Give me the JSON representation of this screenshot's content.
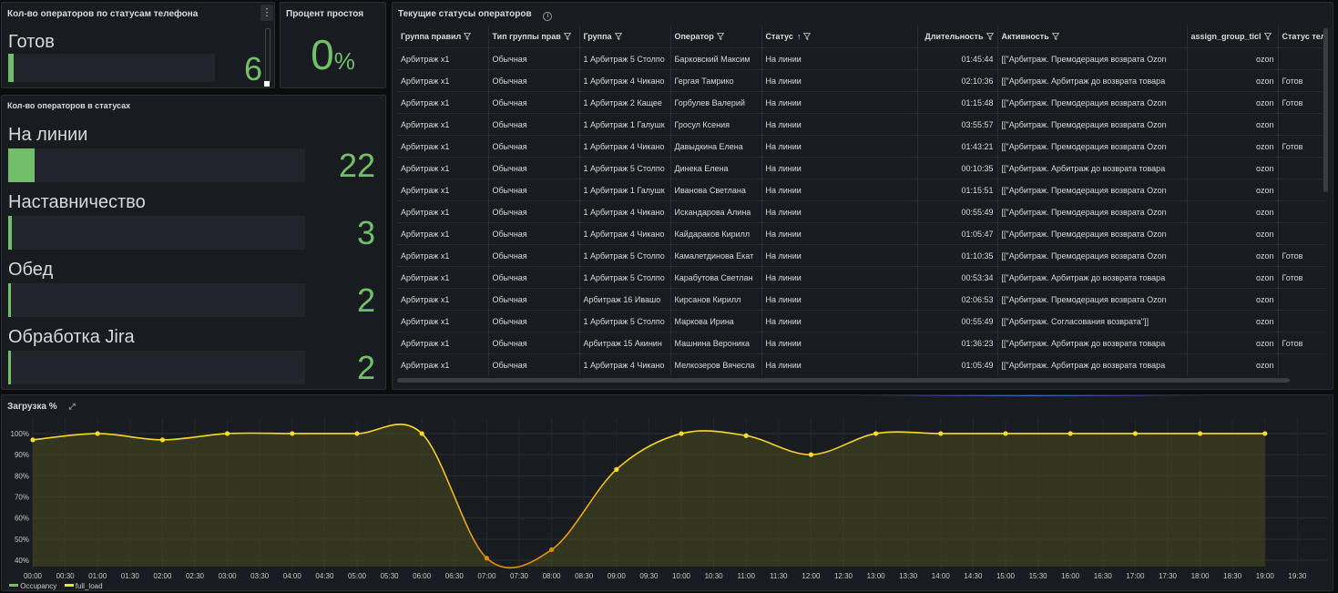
{
  "panel_phone_status": {
    "title": "Кол-во операторов по статусам телефона",
    "rows": [
      {
        "label": "Готов",
        "value": "6",
        "fraction": 0.03
      }
    ]
  },
  "panel_idle": {
    "title": "Процент простоя",
    "value": "0",
    "unit": "%"
  },
  "panel_statuses": {
    "title": "Кол-во операторов в статусах",
    "rows": [
      {
        "label": "На линии",
        "value": "22",
        "fraction": 0.09
      },
      {
        "label": "Наставничество",
        "value": "3",
        "fraction": 0.012
      },
      {
        "label": "Обед",
        "value": "2",
        "fraction": 0.012
      },
      {
        "label": "Обработка Jira",
        "value": "2",
        "fraction": 0.012
      }
    ]
  },
  "table": {
    "title": "Текущие статусы операторов",
    "headers": [
      "Группа правил",
      "Тип группы прав",
      "Группа",
      "Оператор",
      "Статус",
      "Длительность",
      "Активность",
      "assign_group_ticl",
      "Статус теле"
    ],
    "sort_arrow": "↑",
    "rows": [
      [
        "Арбитраж x1",
        "Обычная",
        "1 Арбитраж 5 Столпо",
        "Барковский Максим",
        "На линии",
        "01:45:44",
        "[[\"Арбитраж. Премодерация возврата Ozon",
        "ozon",
        ""
      ],
      [
        "Арбитраж x1",
        "Обычная",
        "1 Арбитраж 4 Чикано",
        "Гергая Тамрико",
        "На линии",
        "02:10:36",
        "[[\"Арбитраж. Арбитраж до возврата товара",
        "ozon",
        "Готов"
      ],
      [
        "Арбитраж x1",
        "Обычная",
        "1 Арбитраж 2 Кащее",
        "Горбулев Валерий",
        "На линии",
        "01:15:48",
        "[[\"Арбитраж. Премодерация возврата Ozon",
        "ozon",
        "Готов"
      ],
      [
        "Арбитраж x1",
        "Обычная",
        "1 Арбитраж 1 Галушк",
        "Гросул Ксения",
        "На линии",
        "03:55:57",
        "[[\"Арбитраж. Премодерация возврата Ozon",
        "ozon",
        ""
      ],
      [
        "Арбитраж x1",
        "Обычная",
        "1 Арбитраж 4 Чикано",
        "Давыдкина Елена",
        "На линии",
        "01:43:21",
        "[[\"Арбитраж. Премодерация возврата Ozon",
        "ozon",
        "Готов"
      ],
      [
        "Арбитраж x1",
        "Обычная",
        "1 Арбитраж 5 Столпо",
        "Динека Елена",
        "На линии",
        "00:10:35",
        "[[\"Арбитраж. Арбитраж до возврата товара",
        "ozon",
        ""
      ],
      [
        "Арбитраж x1",
        "Обычная",
        "1 Арбитраж 1 Галушк",
        "Иванова Светлана",
        "На линии",
        "01:15:51",
        "[[\"Арбитраж. Премодерация возврата Ozon",
        "ozon",
        ""
      ],
      [
        "Арбитраж x1",
        "Обычная",
        "1 Арбитраж 4 Чикано",
        "Искандарова Алина",
        "На линии",
        "00:55:49",
        "[[\"Арбитраж. Премодерация возврата Ozon",
        "ozon",
        ""
      ],
      [
        "Арбитраж x1",
        "Обычная",
        "1 Арбитраж 4 Чикано",
        "Кайдараков Кирилл",
        "На линии",
        "01:05:47",
        "[[\"Арбитраж. Премодерация возврата Ozon",
        "ozon",
        ""
      ],
      [
        "Арбитраж x1",
        "Обычная",
        "1 Арбитраж 5 Столпо",
        "Камалетдинова Екат",
        "На линии",
        "01:10:35",
        "[[\"Арбитраж. Премодерация возврата Ozon",
        "ozon",
        "Готов"
      ],
      [
        "Арбитраж x1",
        "Обычная",
        "1 Арбитраж 5 Столпо",
        "Карабутова Светлан",
        "На линии",
        "00:53:34",
        "[[\"Арбитраж. Арбитраж до возврата товара",
        "ozon",
        "Готов"
      ],
      [
        "Арбитраж x1",
        "Обычная",
        "Арбитраж 16 Ивашо",
        "Кирсанов Кирилл",
        "На линии",
        "02:06:53",
        "[[\"Арбитраж. Премодерация возврата Ozon",
        "ozon",
        ""
      ],
      [
        "Арбитраж x1",
        "Обычная",
        "1 Арбитраж 5 Столпо",
        "Маркова Ирина",
        "На линии",
        "00:55:49",
        "[[\"Арбитраж. Согласования возврата\"]]",
        "ozon",
        ""
      ],
      [
        "Арбитраж x1",
        "Обычная",
        "Арбитраж 15 Акинин",
        "Машнина Вероника",
        "На линии",
        "01:36:23",
        "[[\"Арбитраж. Арбитраж до возврата товара",
        "ozon",
        "Готов"
      ],
      [
        "Арбитраж x1",
        "Обычная",
        "1 Арбитраж 4 Чикано",
        "Мелкозеров Вячесла",
        "На линии",
        "01:05:49",
        "[[\"Арбитраж. Арбитраж до возврата товара",
        "ozon",
        ""
      ]
    ]
  },
  "chart_panel": {
    "title": "Загрузка %"
  },
  "chart_data": {
    "type": "line",
    "title": "Загрузка %",
    "x": [
      "00:00",
      "01:00",
      "02:00",
      "03:00",
      "04:00",
      "05:00",
      "06:00",
      "07:00",
      "08:00",
      "09:00",
      "10:00",
      "11:00",
      "12:00",
      "13:00",
      "14:00",
      "15:00",
      "16:00",
      "17:00",
      "18:00",
      "19:00"
    ],
    "x_ticks": [
      "00:00",
      "00:30",
      "01:00",
      "01:30",
      "02:00",
      "02:30",
      "03:00",
      "03:30",
      "04:00",
      "04:30",
      "05:00",
      "05:30",
      "06:00",
      "06:30",
      "07:00",
      "07:30",
      "08:00",
      "08:30",
      "09:00",
      "09:30",
      "10:00",
      "10:30",
      "11:00",
      "11:30",
      "12:00",
      "12:30",
      "13:00",
      "13:30",
      "14:00",
      "14:30",
      "15:00",
      "15:30",
      "16:00",
      "16:30",
      "17:00",
      "17:30",
      "18:00",
      "18:30",
      "19:00",
      "19:30"
    ],
    "y_ticks": [
      "40%",
      "50%",
      "60%",
      "70%",
      "80%",
      "90%",
      "100%"
    ],
    "ylim": [
      37,
      103
    ],
    "series": [
      {
        "name": "Occupancy",
        "color": "#73bf69",
        "values": [
          97,
          100,
          97,
          100,
          100,
          100,
          100,
          41,
          45,
          83,
          100,
          99,
          90,
          100,
          100,
          100,
          100,
          100,
          100,
          100
        ]
      },
      {
        "name": "full_load",
        "color": "#fade2a",
        "values": [
          97,
          100,
          97,
          100,
          100,
          100,
          100,
          41,
          45,
          83,
          100,
          99,
          90,
          100,
          100,
          100,
          100,
          100,
          100,
          100
        ]
      }
    ],
    "legend_position": "bottom-left",
    "grid": true
  },
  "colors": {
    "accent_green": "#73bf69",
    "line_yellow": "#fade2a",
    "line_orange": "#e08a12"
  }
}
